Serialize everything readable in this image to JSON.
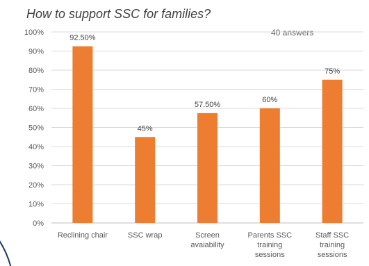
{
  "chart_data": {
    "type": "bar",
    "title": "How to support SSC for families?",
    "annotation": "40 answers",
    "categories": [
      [
        "Reclining chair"
      ],
      [
        "SSC wrap"
      ],
      [
        "Screen",
        "avaiability"
      ],
      [
        "Parents SSC",
        "training",
        "sessions"
      ],
      [
        "Staff SSC",
        "training",
        "sessions"
      ]
    ],
    "values": [
      92.5,
      45,
      57.5,
      60,
      75
    ],
    "data_labels": [
      "92.50%",
      "45%",
      "57.50%",
      "60%",
      "75%"
    ],
    "y_ticks": [
      "0%",
      "10%",
      "20%",
      "30%",
      "40%",
      "50%",
      "60%",
      "70%",
      "80%",
      "90%",
      "100%"
    ],
    "ylim": [
      0,
      100
    ],
    "xlabel": "",
    "ylabel": "",
    "grid": true,
    "legend": "none",
    "bar_color": "#ed7d31"
  }
}
